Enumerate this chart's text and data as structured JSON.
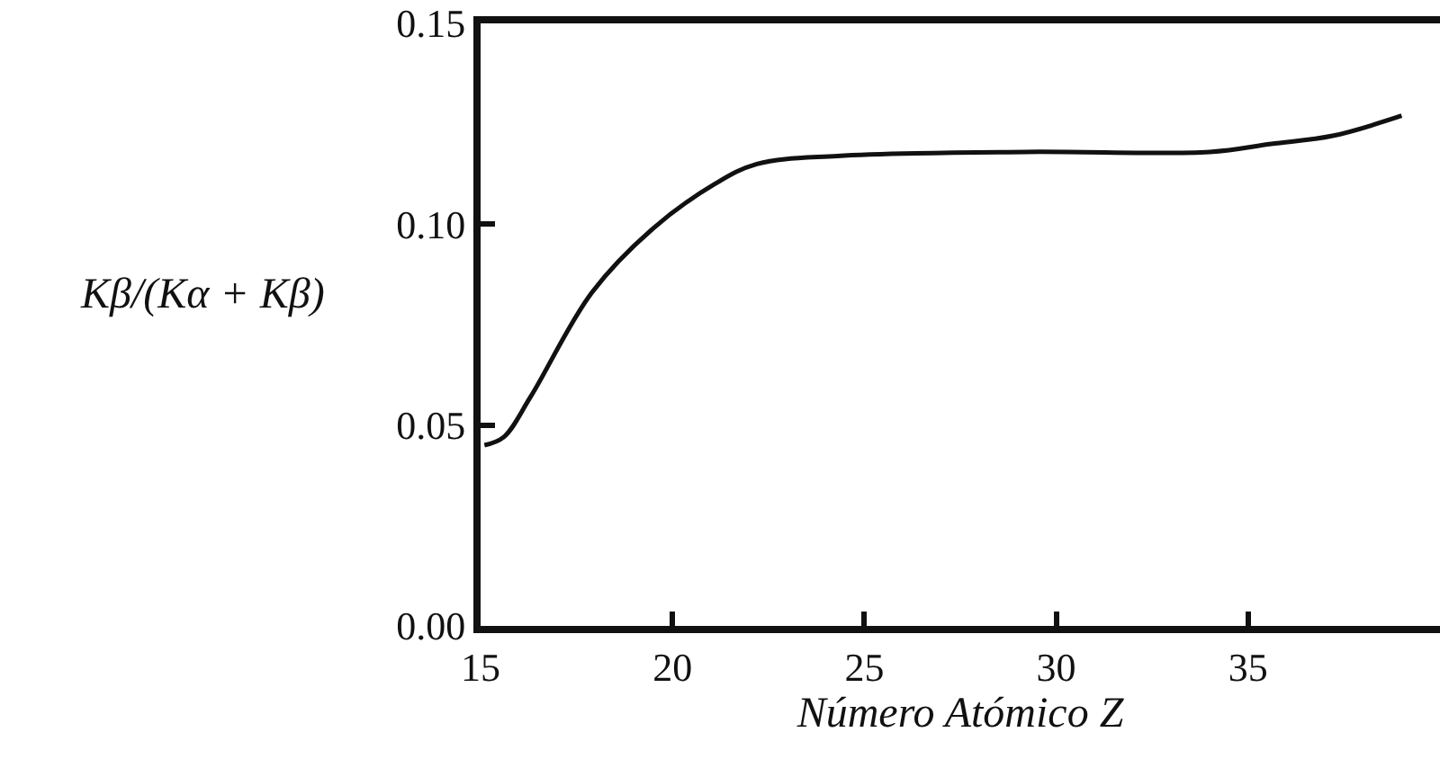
{
  "chart_data": {
    "type": "line",
    "xlabel": "Número Atómico Z",
    "ylabel": "Kβ/(Kα + Kβ)",
    "series": [
      {
        "color": "#111111",
        "x": [
          15.1,
          15.6,
          16.3,
          17.9,
          19.5,
          21.1,
          22.2,
          24.3,
          29.2,
          34.0,
          35.6,
          37.2,
          39.0
        ],
        "values": [
          0.045,
          0.047,
          0.057,
          0.083,
          0.099,
          0.11,
          0.115,
          0.117,
          0.118,
          0.118,
          0.12,
          0.122,
          0.127
        ]
      }
    ],
    "xlim": [
      15,
      40
    ],
    "xticks": [
      15,
      20,
      25,
      30,
      35
    ],
    "ylim": [
      0,
      0.15
    ],
    "yticks": [
      {
        "value": 0,
        "label": "0.00"
      },
      {
        "value": 0.05,
        "label": "0.05"
      },
      {
        "value": 0.1,
        "label": "0.10"
      },
      {
        "value": 0.15,
        "label": "0.15"
      }
    ],
    "marker": "none",
    "line_style": "solid"
  }
}
